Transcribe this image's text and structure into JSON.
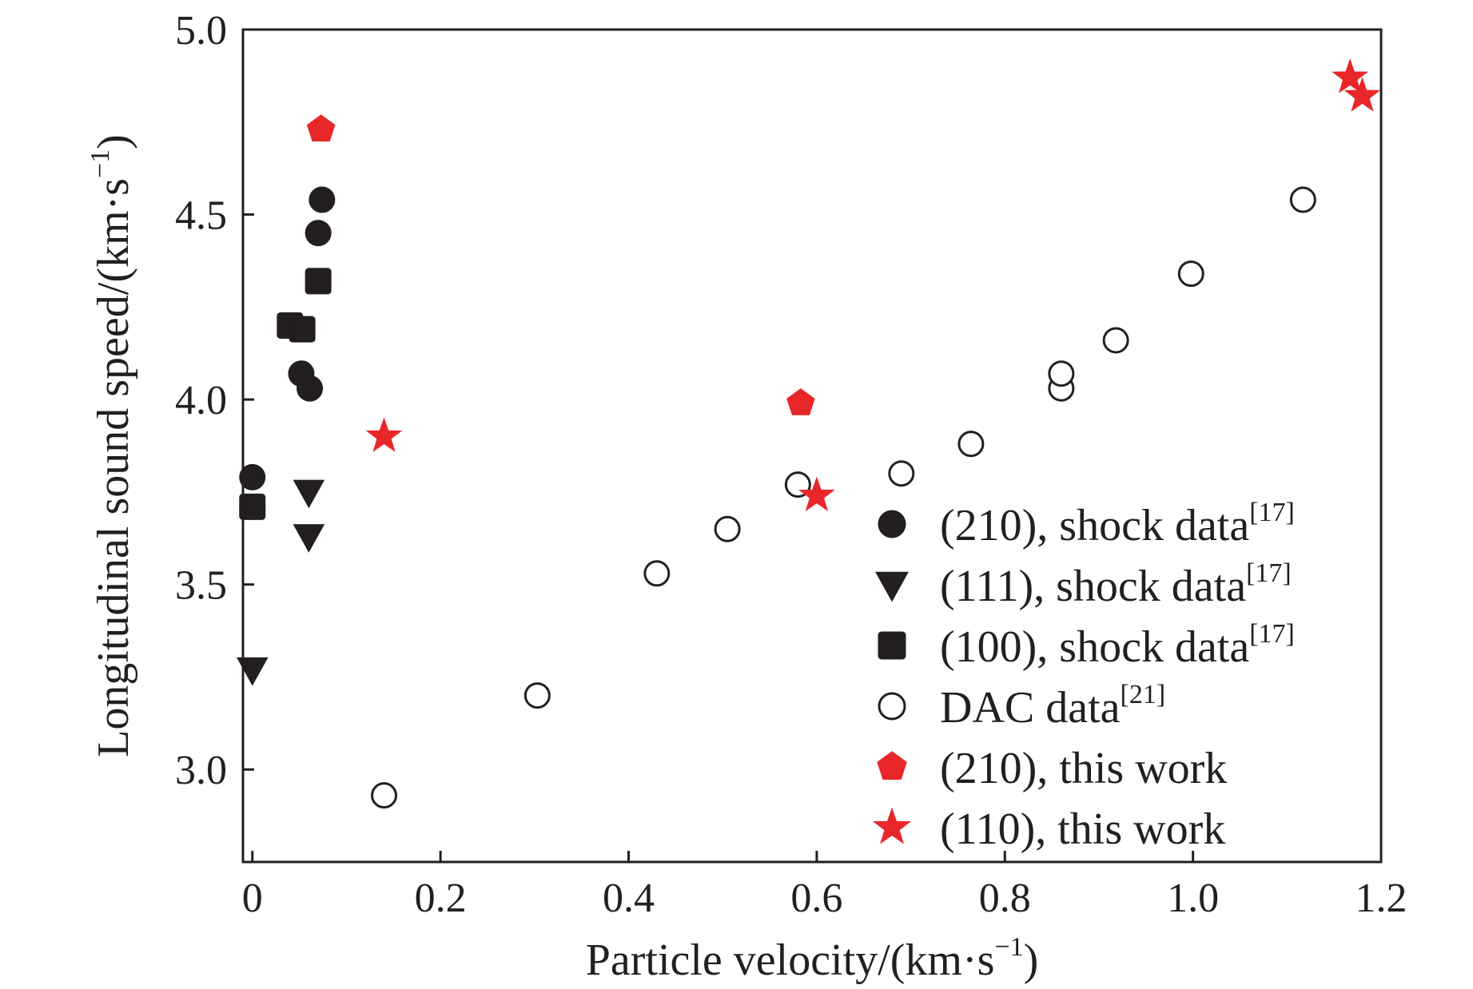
{
  "chart_data": {
    "type": "scatter",
    "xlabel": "Particle velocity/(km·s",
    "xlabel_sup": "−1",
    "xlabel_close": ")",
    "ylabel": "Longitudinal sound speed/(km·s",
    "ylabel_sup": "−1",
    "ylabel_close": ")",
    "xlim": [
      -0.01,
      1.2
    ],
    "ylim": [
      2.75,
      5.0
    ],
    "xticks": [
      0,
      0.2,
      0.4,
      0.6,
      0.8,
      1.0,
      1.2
    ],
    "xtick_labels": [
      "0",
      "0.2",
      "0.4",
      "0.6",
      "0.8",
      "1.0",
      "1.2"
    ],
    "yticks": [
      3.0,
      3.5,
      4.0,
      4.5,
      5.0
    ],
    "ytick_labels": [
      "3.0",
      "3.5",
      "4.0",
      "4.5",
      "5.0"
    ],
    "grid": false,
    "legend_position": "bottom-right",
    "series": [
      {
        "name": "(210), shock data",
        "ref": "[17]",
        "marker": "circle",
        "color": "#231f20",
        "filled": true,
        "points": [
          [
            0.0,
            3.79
          ],
          [
            0.052,
            4.07
          ],
          [
            0.061,
            4.03
          ],
          [
            0.07,
            4.45
          ],
          [
            0.074,
            4.54
          ]
        ]
      },
      {
        "name": "(111), shock data",
        "ref": "[17]",
        "marker": "triangle-down",
        "color": "#231f20",
        "filled": true,
        "points": [
          [
            0.0,
            3.27
          ],
          [
            0.06,
            3.75
          ],
          [
            0.06,
            3.63
          ]
        ]
      },
      {
        "name": "(100), shock data",
        "ref": "[17]",
        "marker": "square",
        "color": "#231f20",
        "filled": true,
        "points": [
          [
            0.0,
            3.71
          ],
          [
            0.04,
            4.2
          ],
          [
            0.053,
            4.19
          ],
          [
            0.07,
            4.32
          ]
        ]
      },
      {
        "name": "DAC data",
        "ref": "[21]",
        "marker": "circle",
        "color": "#231f20",
        "filled": false,
        "points": [
          [
            0.14,
            2.93
          ],
          [
            0.303,
            3.2
          ],
          [
            0.43,
            3.53
          ],
          [
            0.505,
            3.65
          ],
          [
            0.58,
            3.77
          ],
          [
            0.69,
            3.8
          ],
          [
            0.764,
            3.88
          ],
          [
            0.86,
            4.03
          ],
          [
            0.86,
            4.07
          ],
          [
            0.918,
            4.16
          ],
          [
            0.998,
            4.34
          ],
          [
            1.117,
            4.54
          ]
        ]
      },
      {
        "name": "(210), this work",
        "marker": "pentagon",
        "color": "#e8272a",
        "filled": true,
        "points": [
          [
            0.073,
            4.73
          ],
          [
            0.583,
            3.99
          ]
        ]
      },
      {
        "name": "(110), this work",
        "marker": "star",
        "color": "#e8272a",
        "filled": true,
        "points": [
          [
            0.14,
            3.9
          ],
          [
            0.6,
            3.74
          ],
          [
            1.167,
            4.87
          ],
          [
            1.18,
            4.82
          ]
        ]
      }
    ]
  }
}
